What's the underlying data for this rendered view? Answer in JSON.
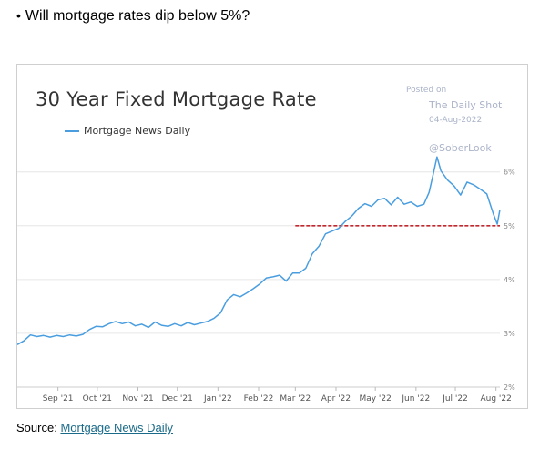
{
  "question": {
    "bullet": "•",
    "text": "Will mortgage rates dip below 5%?"
  },
  "chart": {
    "title": "30 Year Fixed Mortgage Rate",
    "legend_label": "Mortgage News Daily",
    "posted_on": "Posted on",
    "publisher": "The Daily Shot",
    "post_date": "04-Aug-2022",
    "handle": "@SoberLook"
  },
  "chart_data": {
    "type": "line",
    "title": "30 Year Fixed Mortgage Rate",
    "xlabel": "",
    "ylabel": "",
    "x_ticks": [
      "Sep '21",
      "Oct '21",
      "Nov '21",
      "Dec '21",
      "Jan '22",
      "Feb '22",
      "Mar '22",
      "Apr '22",
      "May '22",
      "Jun '22",
      "Jul '22",
      "Aug '22"
    ],
    "y_ticks": [
      "2%",
      "3%",
      "4%",
      "5%",
      "6%"
    ],
    "ylim": [
      2,
      6.3
    ],
    "y_axis_side": "right",
    "grid": true,
    "legend": "top-left",
    "line_color": "#4a9ee0",
    "threshold": {
      "value": 5.0,
      "x_start": "2022-03-01",
      "style": "dashed",
      "color": "#c0282d"
    },
    "series": [
      {
        "name": "Mortgage News Daily",
        "x": [
          "2021-08-01",
          "2021-08-06",
          "2021-08-11",
          "2021-08-16",
          "2021-08-21",
          "2021-08-26",
          "2021-08-31",
          "2021-09-05",
          "2021-09-10",
          "2021-09-15",
          "2021-09-20",
          "2021-09-25",
          "2021-09-30",
          "2021-10-05",
          "2021-10-10",
          "2021-10-15",
          "2021-10-20",
          "2021-10-25",
          "2021-10-30",
          "2021-11-04",
          "2021-11-09",
          "2021-11-14",
          "2021-11-19",
          "2021-11-24",
          "2021-11-29",
          "2021-12-04",
          "2021-12-09",
          "2021-12-14",
          "2021-12-19",
          "2021-12-24",
          "2021-12-29",
          "2022-01-03",
          "2022-01-08",
          "2022-01-13",
          "2022-01-18",
          "2022-01-23",
          "2022-01-28",
          "2022-02-02",
          "2022-02-07",
          "2022-02-12",
          "2022-02-17",
          "2022-02-22",
          "2022-02-27",
          "2022-03-04",
          "2022-03-09",
          "2022-03-14",
          "2022-03-19",
          "2022-03-24",
          "2022-03-29",
          "2022-04-03",
          "2022-04-08",
          "2022-04-13",
          "2022-04-18",
          "2022-04-23",
          "2022-04-28",
          "2022-05-03",
          "2022-05-08",
          "2022-05-13",
          "2022-05-18",
          "2022-05-23",
          "2022-05-28",
          "2022-06-02",
          "2022-06-07",
          "2022-06-11",
          "2022-06-14",
          "2022-06-17",
          "2022-06-20",
          "2022-06-25",
          "2022-06-30",
          "2022-07-05",
          "2022-07-10",
          "2022-07-15",
          "2022-07-20",
          "2022-07-25",
          "2022-07-30",
          "2022-08-02",
          "2022-08-04"
        ],
        "y": [
          2.79,
          2.86,
          2.97,
          2.94,
          2.96,
          2.93,
          2.96,
          2.94,
          2.97,
          2.95,
          2.98,
          3.07,
          3.13,
          3.12,
          3.18,
          3.22,
          3.18,
          3.21,
          3.14,
          3.17,
          3.11,
          3.21,
          3.15,
          3.13,
          3.18,
          3.14,
          3.2,
          3.16,
          3.19,
          3.22,
          3.28,
          3.38,
          3.62,
          3.72,
          3.68,
          3.75,
          3.83,
          3.92,
          4.03,
          4.05,
          4.08,
          3.97,
          4.12,
          4.12,
          4.21,
          4.48,
          4.62,
          4.85,
          4.9,
          4.95,
          5.08,
          5.18,
          5.32,
          5.41,
          5.36,
          5.48,
          5.51,
          5.39,
          5.53,
          5.4,
          5.44,
          5.36,
          5.4,
          5.62,
          5.94,
          6.28,
          6.02,
          5.85,
          5.74,
          5.57,
          5.81,
          5.76,
          5.68,
          5.59,
          5.22,
          5.03,
          5.3
        ]
      }
    ]
  },
  "source": {
    "label": "Source:",
    "link_text": "Mortgage News Daily"
  }
}
